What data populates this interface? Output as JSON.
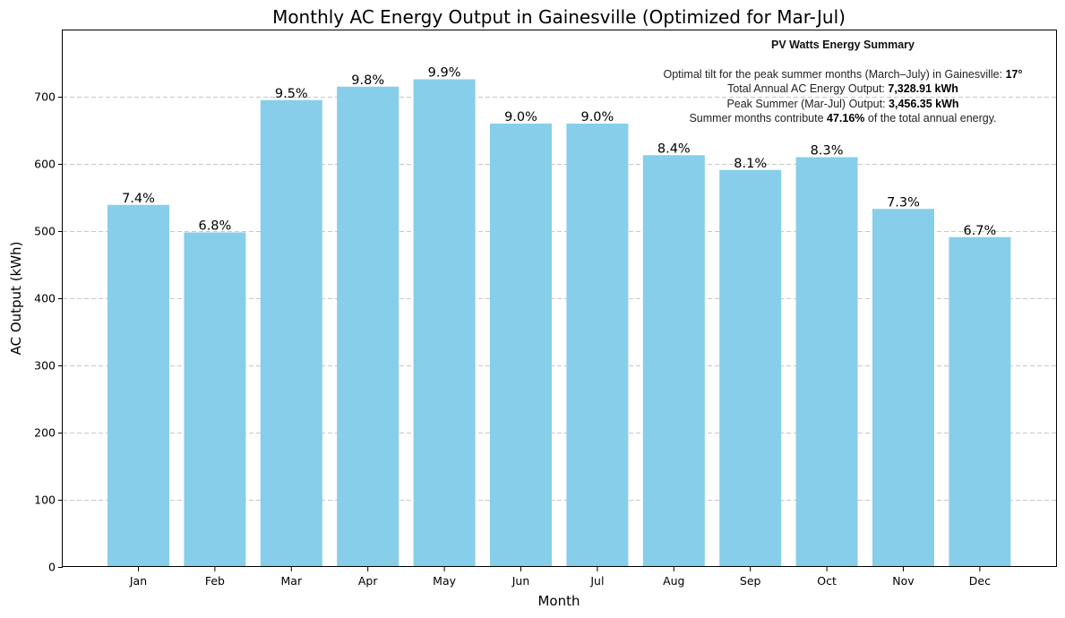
{
  "chart_data": {
    "type": "bar",
    "title": "Monthly AC Energy Output in Gainesville (Optimized for Mar-Jul)",
    "xlabel": "Month",
    "ylabel": "AC Output (kWh)",
    "categories": [
      "Jan",
      "Feb",
      "Mar",
      "Apr",
      "May",
      "Jun",
      "Jul",
      "Aug",
      "Sep",
      "Oct",
      "Nov",
      "Dec"
    ],
    "values": [
      539,
      498,
      695,
      715,
      726,
      660,
      660,
      613,
      591,
      610,
      533,
      491
    ],
    "value_labels": [
      "7.4%",
      "6.8%",
      "9.5%",
      "9.8%",
      "9.9%",
      "9.0%",
      "9.0%",
      "8.4%",
      "8.1%",
      "8.3%",
      "7.3%",
      "6.7%"
    ],
    "ylim": [
      0,
      800
    ],
    "yticks": [
      0,
      100,
      200,
      300,
      400,
      500,
      600,
      700
    ],
    "grid": "y-dashed",
    "bar_color": "#87CEEB"
  },
  "summary": {
    "title": "PV Watts Energy Summary",
    "line1_text": "Optimal tilt for the peak summer months (March–July) in Gainesville: ",
    "line1_value": "17°",
    "line2_text": "Total Annual AC Energy Output: ",
    "line2_value": "7,328.91 kWh",
    "line3_text": "Peak Summer (Mar-Jul) Output: ",
    "line3_value": "3,456.35 kWh",
    "line4_text": "Summer months contribute ",
    "line4_value": "47.16%",
    "line4_suffix": " of the total annual energy."
  }
}
